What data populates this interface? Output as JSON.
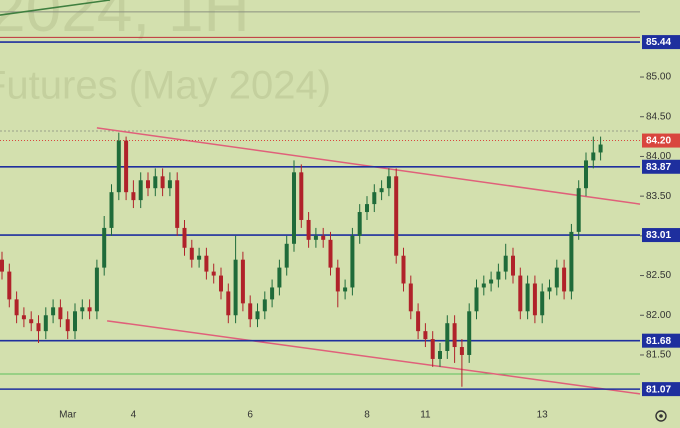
{
  "chart_data": {
    "type": "candlestick",
    "watermark": [
      "2024, 1H",
      "Futures (May 2024)"
    ],
    "categories": [
      null,
      null,
      null,
      null,
      null,
      null,
      null,
      null,
      null,
      "Mar",
      null,
      null,
      null,
      null,
      null,
      null,
      null,
      null,
      "4",
      null,
      null,
      null,
      null,
      null,
      null,
      null,
      null,
      null,
      null,
      null,
      null,
      null,
      null,
      null,
      "6",
      null,
      null,
      null,
      null,
      null,
      null,
      null,
      null,
      null,
      null,
      null,
      null,
      null,
      null,
      null,
      "8",
      null,
      null,
      null,
      null,
      null,
      null,
      null,
      "11",
      null,
      null,
      null,
      null,
      null,
      null,
      null,
      null,
      null,
      null,
      null,
      null,
      null,
      null,
      null,
      "13",
      null,
      null,
      null,
      null,
      null,
      null,
      null,
      null
    ],
    "open": [
      82.7,
      82.55,
      82.2,
      82.0,
      81.95,
      81.9,
      81.8,
      82.0,
      82.1,
      81.95,
      81.8,
      82.05,
      82.1,
      82.05,
      82.6,
      83.1,
      83.55,
      84.2,
      83.55,
      83.45,
      83.7,
      83.6,
      83.75,
      83.6,
      83.7,
      83.1,
      82.85,
      82.7,
      82.75,
      82.55,
      82.5,
      82.3,
      82.0,
      82.7,
      82.15,
      81.95,
      82.05,
      82.2,
      82.35,
      82.6,
      82.9,
      83.8,
      83.2,
      82.95,
      83.0,
      82.95,
      82.6,
      82.3,
      82.35,
      83.0,
      83.3,
      83.4,
      83.55,
      83.6,
      83.75,
      82.75,
      82.4,
      82.05,
      81.8,
      81.7,
      81.45,
      81.55,
      81.9,
      81.6,
      81.5,
      82.05,
      82.35,
      82.4,
      82.45,
      82.55,
      82.75,
      82.5,
      82.05,
      82.4,
      82.0,
      82.3,
      82.35,
      82.6,
      82.3,
      83.05,
      83.6,
      83.95,
      84.05
    ],
    "high": [
      82.8,
      82.65,
      82.3,
      82.1,
      82.05,
      82.0,
      82.1,
      82.2,
      82.2,
      82.05,
      82.15,
      82.2,
      82.2,
      82.7,
      83.25,
      83.65,
      84.3,
      84.25,
      83.7,
      83.8,
      83.8,
      83.85,
      83.85,
      83.8,
      83.8,
      83.2,
      82.95,
      82.85,
      82.85,
      82.65,
      82.6,
      82.4,
      83.0,
      82.8,
      82.25,
      82.15,
      82.3,
      82.45,
      82.7,
      83.0,
      83.95,
      83.9,
      83.3,
      83.1,
      83.1,
      83.05,
      82.7,
      82.45,
      83.1,
      83.4,
      83.5,
      83.65,
      83.7,
      83.85,
      83.85,
      82.85,
      82.5,
      82.15,
      81.9,
      81.8,
      81.65,
      82.0,
      82.0,
      81.7,
      82.15,
      82.45,
      82.5,
      82.55,
      82.65,
      82.9,
      82.85,
      82.6,
      82.5,
      82.5,
      82.4,
      82.45,
      82.7,
      82.7,
      83.15,
      83.7,
      84.05,
      84.25,
      84.25
    ],
    "low": [
      82.45,
      82.1,
      81.9,
      81.85,
      81.8,
      81.65,
      81.7,
      81.9,
      81.85,
      81.7,
      81.7,
      81.95,
      81.95,
      81.95,
      82.5,
      83.0,
      83.45,
      83.45,
      83.35,
      83.35,
      83.5,
      83.5,
      83.5,
      83.5,
      83.0,
      82.75,
      82.6,
      82.6,
      82.45,
      82.4,
      82.2,
      81.9,
      81.9,
      82.05,
      81.85,
      81.85,
      81.95,
      82.1,
      82.25,
      82.5,
      82.8,
      83.1,
      82.85,
      82.85,
      82.85,
      82.5,
      82.1,
      82.2,
      82.25,
      82.9,
      83.2,
      83.3,
      83.45,
      83.5,
      82.65,
      82.3,
      81.95,
      81.7,
      81.6,
      81.35,
      81.35,
      81.45,
      81.4,
      81.1,
      81.4,
      81.95,
      82.25,
      82.3,
      82.35,
      82.45,
      82.4,
      81.95,
      81.95,
      81.9,
      81.9,
      82.2,
      82.25,
      82.2,
      82.2,
      82.95,
      83.5,
      83.85,
      83.95
    ],
    "close": [
      82.55,
      82.2,
      82.0,
      81.95,
      81.9,
      81.8,
      82.0,
      82.1,
      81.95,
      81.8,
      82.05,
      82.1,
      82.05,
      82.6,
      83.1,
      83.55,
      84.2,
      83.55,
      83.45,
      83.7,
      83.6,
      83.75,
      83.6,
      83.7,
      83.1,
      82.85,
      82.7,
      82.75,
      82.55,
      82.5,
      82.3,
      82.0,
      82.7,
      82.15,
      81.95,
      82.05,
      82.2,
      82.35,
      82.6,
      82.9,
      83.8,
      83.2,
      82.95,
      83.0,
      82.95,
      82.6,
      82.3,
      82.35,
      83.0,
      83.3,
      83.4,
      83.55,
      83.6,
      83.75,
      82.75,
      82.4,
      82.05,
      81.8,
      81.7,
      81.45,
      81.55,
      81.9,
      81.6,
      81.5,
      82.05,
      82.35,
      82.4,
      82.45,
      82.55,
      82.75,
      82.5,
      82.05,
      82.4,
      82.0,
      82.3,
      82.35,
      82.6,
      82.3,
      83.05,
      83.6,
      83.95,
      84.05,
      84.15
    ],
    "up_color": "#1f6b3a",
    "down_color": "#b0222a",
    "ylim": [
      80.87,
      85.97
    ],
    "yticks": [
      {
        "value": 85,
        "label": "85.00"
      },
      {
        "value": 84.5,
        "label": "84.50"
      },
      {
        "value": 84,
        "label": "84.00"
      },
      {
        "value": 83.5,
        "label": "83.50"
      },
      {
        "value": 83,
        "label": "83.00"
      },
      {
        "value": 82.5,
        "label": "82.50"
      },
      {
        "value": 82,
        "label": "82.00"
      },
      {
        "value": 81.5,
        "label": "81.50"
      }
    ],
    "levels": [
      {
        "value": 85.44,
        "label": "85.44",
        "color": "#1e2f9e"
      },
      {
        "value": 84.2,
        "label": "84.20",
        "color": "#d9463e"
      },
      {
        "value": 83.87,
        "label": "83.87",
        "color": "#1e2f9e"
      },
      {
        "value": 83.01,
        "label": "83.01",
        "color": "#1e2f9e"
      },
      {
        "value": 81.68,
        "label": "81.68",
        "color": "#1e2f9e"
      },
      {
        "value": 81.07,
        "label": "81.07",
        "color": "#1e2f9e"
      }
    ],
    "lines": [
      {
        "value": 85.82,
        "color": "#8a8f80"
      },
      {
        "value": 85.5,
        "color": "#c0303a"
      },
      {
        "value": 84.32,
        "color": "#9aa08a"
      },
      {
        "value": 81.26,
        "color": "#5cbf5c"
      }
    ],
    "trend_lines": [
      {
        "from": [
          13,
          84.36
        ],
        "to": [
          87.4,
          83.4
        ],
        "color": "#e0607a"
      },
      {
        "from": [
          14.4,
          81.93
        ],
        "to": [
          87.4,
          81.01
        ],
        "color": "#e0607a"
      },
      {
        "from": [
          -0.3,
          85.78
        ],
        "to": [
          14.8,
          85.97
        ],
        "color": "#3f7f3f"
      }
    ]
  }
}
